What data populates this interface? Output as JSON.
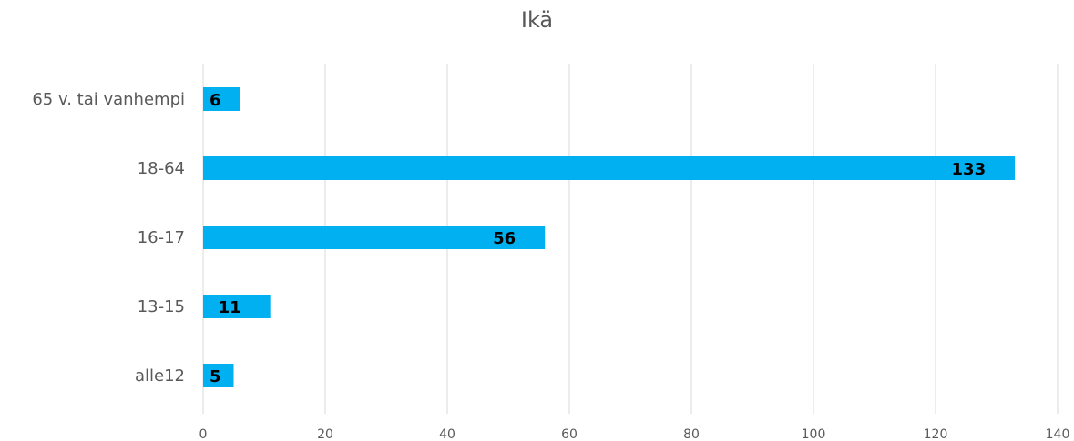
{
  "chart_data": {
    "type": "bar",
    "orientation": "horizontal",
    "title": "Ikä",
    "categories": [
      "65 v. tai vanhempi",
      "18-64",
      "16-17",
      "13-15",
      "alle12"
    ],
    "values": [
      6,
      133,
      56,
      11,
      5
    ],
    "xlim": [
      0,
      140
    ],
    "xticks": [
      0,
      20,
      40,
      60,
      80,
      100,
      120,
      140
    ],
    "grid": true,
    "bar_color": "#00B0F0",
    "gridline_color": "#D9D9D9"
  }
}
